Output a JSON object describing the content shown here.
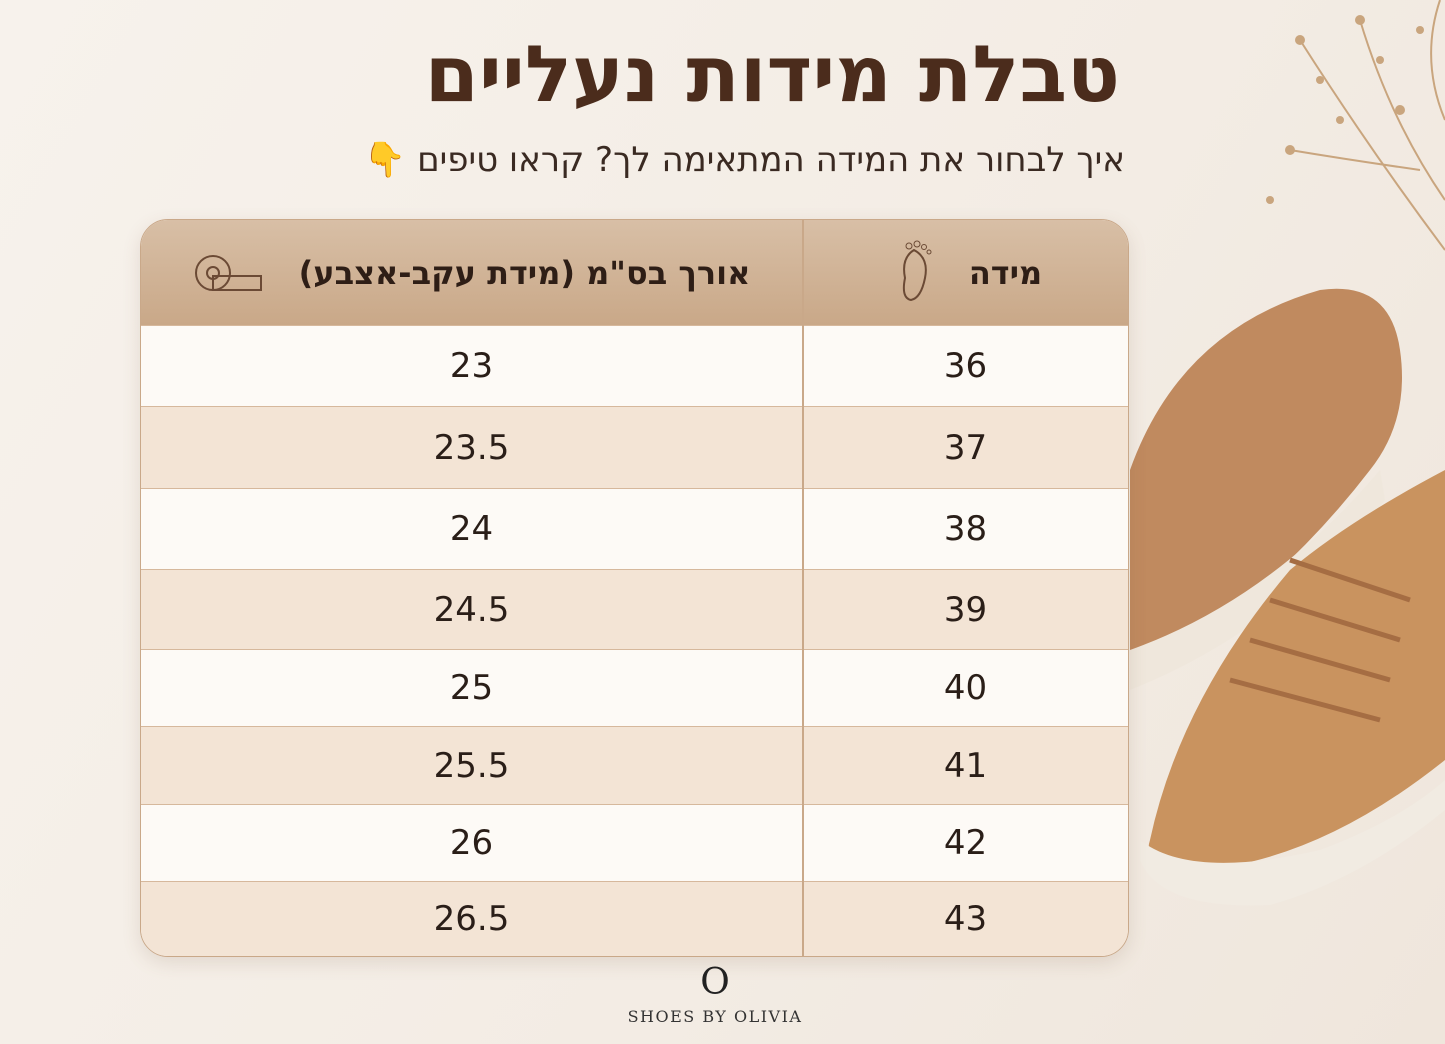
{
  "header": {
    "title": "טבלת מידות נעליים",
    "subtitle": "איך לבחור את המידה המתאימה לך? קראו טיפים 👇"
  },
  "table": {
    "columns": [
      "מידה",
      "אורך בס\"מ (מידת עקב-אצבע)"
    ],
    "rows": [
      [
        "36",
        "23"
      ],
      [
        "37",
        "23.5"
      ],
      [
        "38",
        "24"
      ],
      [
        "39",
        "24.5"
      ],
      [
        "40",
        "25"
      ],
      [
        "41",
        "25.5"
      ],
      [
        "42",
        "26"
      ],
      [
        "43",
        "26.5"
      ]
    ]
  },
  "footer": {
    "logo": "O",
    "brand": "SHOES BY OLIVIA"
  }
}
